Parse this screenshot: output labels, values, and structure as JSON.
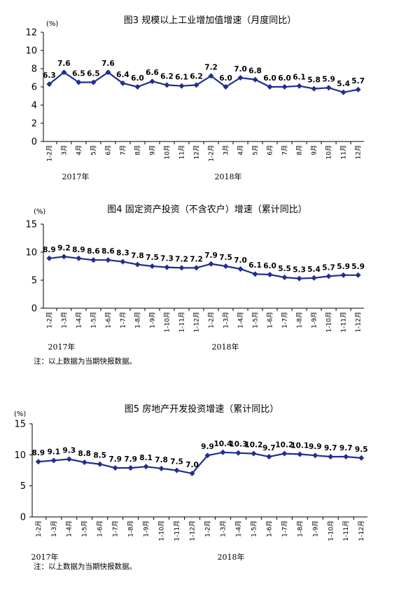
{
  "chart_data": [
    {
      "type": "line",
      "title": "图3   规模以上工业增加值增速（月度同比）",
      "unit": "(%)",
      "ylim": [
        0,
        12
      ],
      "yticks": [
        0,
        2,
        4,
        6,
        8,
        10,
        12
      ],
      "categories": [
        "1-2月",
        "3月",
        "4月",
        "5月",
        "6月",
        "7月",
        "8月",
        "9月",
        "10月",
        "11月",
        "12月",
        "1-2月",
        "3月",
        "4月",
        "5月",
        "6月",
        "7月",
        "8月",
        "9月",
        "10月",
        "11月",
        "12月"
      ],
      "values": [
        6.3,
        7.6,
        6.5,
        6.5,
        7.6,
        6.4,
        6.0,
        6.6,
        6.2,
        6.1,
        6.2,
        7.2,
        6.0,
        7.0,
        6.8,
        6.0,
        6.0,
        6.1,
        5.8,
        5.9,
        5.4,
        5.7
      ],
      "value_labels": [
        "6.3",
        "7.6",
        "6.5",
        "6.5",
        "7.6",
        "6.4",
        "6.0",
        "6.6",
        "6.2",
        "6.1",
        "6.2",
        "7.2",
        "6.0",
        "7.0",
        "6.8",
        "6.0",
        "6.0",
        "6.1",
        "5.8",
        "5.9",
        "5.4",
        "5.7"
      ],
      "year_labels": [
        "2017年",
        "2018年"
      ],
      "note": "",
      "color": "#1f2f8f"
    },
    {
      "type": "line",
      "title": "图4   固定资产投资（不含农户）增速（累计同比）",
      "unit": "(%)",
      "ylim": [
        0,
        15
      ],
      "yticks": [
        0,
        5,
        10,
        15
      ],
      "categories": [
        "1-2月",
        "1-3月",
        "1-4月",
        "1-5月",
        "1-6月",
        "1-7月",
        "1-8月",
        "1-9月",
        "1-10月",
        "1-11月",
        "1-12月",
        "1-2月",
        "1-3月",
        "1-4月",
        "1-5月",
        "1-6月",
        "1-7月",
        "1-8月",
        "1-9月",
        "1-10月",
        "1-11月",
        "1-12月"
      ],
      "values": [
        8.9,
        9.2,
        8.9,
        8.6,
        8.6,
        8.3,
        7.8,
        7.5,
        7.3,
        7.2,
        7.2,
        7.9,
        7.5,
        7.0,
        6.1,
        6.0,
        5.5,
        5.3,
        5.4,
        5.7,
        5.9,
        5.9
      ],
      "value_labels": [
        "8.9",
        "9.2",
        "8.9",
        "8.6",
        "8.6",
        "8.3",
        "7.8",
        "7.5",
        "7.3",
        "7.2",
        "7.2",
        "7.9",
        "7.5",
        "7.0",
        "6.1",
        "6.0",
        "5.5",
        "5.3",
        "5.4",
        "5.7",
        "5.9",
        "5.9"
      ],
      "year_labels": [
        "2017年",
        "2018年"
      ],
      "note": "注：以上数据为当期快报数据。",
      "color": "#1f2f8f"
    },
    {
      "type": "line",
      "title": "图5   房地产开发投资增速（累计同比）",
      "unit": "(%)",
      "ylim": [
        0,
        15
      ],
      "yticks": [
        0,
        5,
        10,
        15
      ],
      "categories": [
        "1-2月",
        "1-3月",
        "1-4月",
        "1-5月",
        "1-6月",
        "1-7月",
        "1-8月",
        "1-9月",
        "1-10月",
        "1-11月",
        "1-12月",
        "1-2月",
        "1-3月",
        "1-4月",
        "1-5月",
        "1-6月",
        "1-7月",
        "1-8月",
        "1-9月",
        "1-10月",
        "1-11月",
        "1-12月"
      ],
      "values": [
        8.9,
        9.1,
        9.3,
        8.8,
        8.5,
        7.9,
        7.9,
        8.1,
        7.8,
        7.5,
        7.0,
        9.9,
        10.4,
        10.3,
        10.2,
        9.7,
        10.2,
        10.1,
        9.9,
        9.7,
        9.7,
        9.5
      ],
      "value_labels": [
        "8.9",
        "9.1",
        "9.3",
        "8.8",
        "8.5",
        "7.9",
        "7.9",
        "8.1",
        "7.8",
        "7.5",
        "7.0",
        "9.9",
        "10.4",
        "10.3",
        "10.2",
        "9.7",
        "10.2",
        "10.1",
        "9.9",
        "9.7",
        "9.7",
        "9.5"
      ],
      "year_labels": [
        "2017年",
        "2018年"
      ],
      "note": "注：以上数据为当期快报数据。",
      "color": "#1f2f8f"
    }
  ]
}
